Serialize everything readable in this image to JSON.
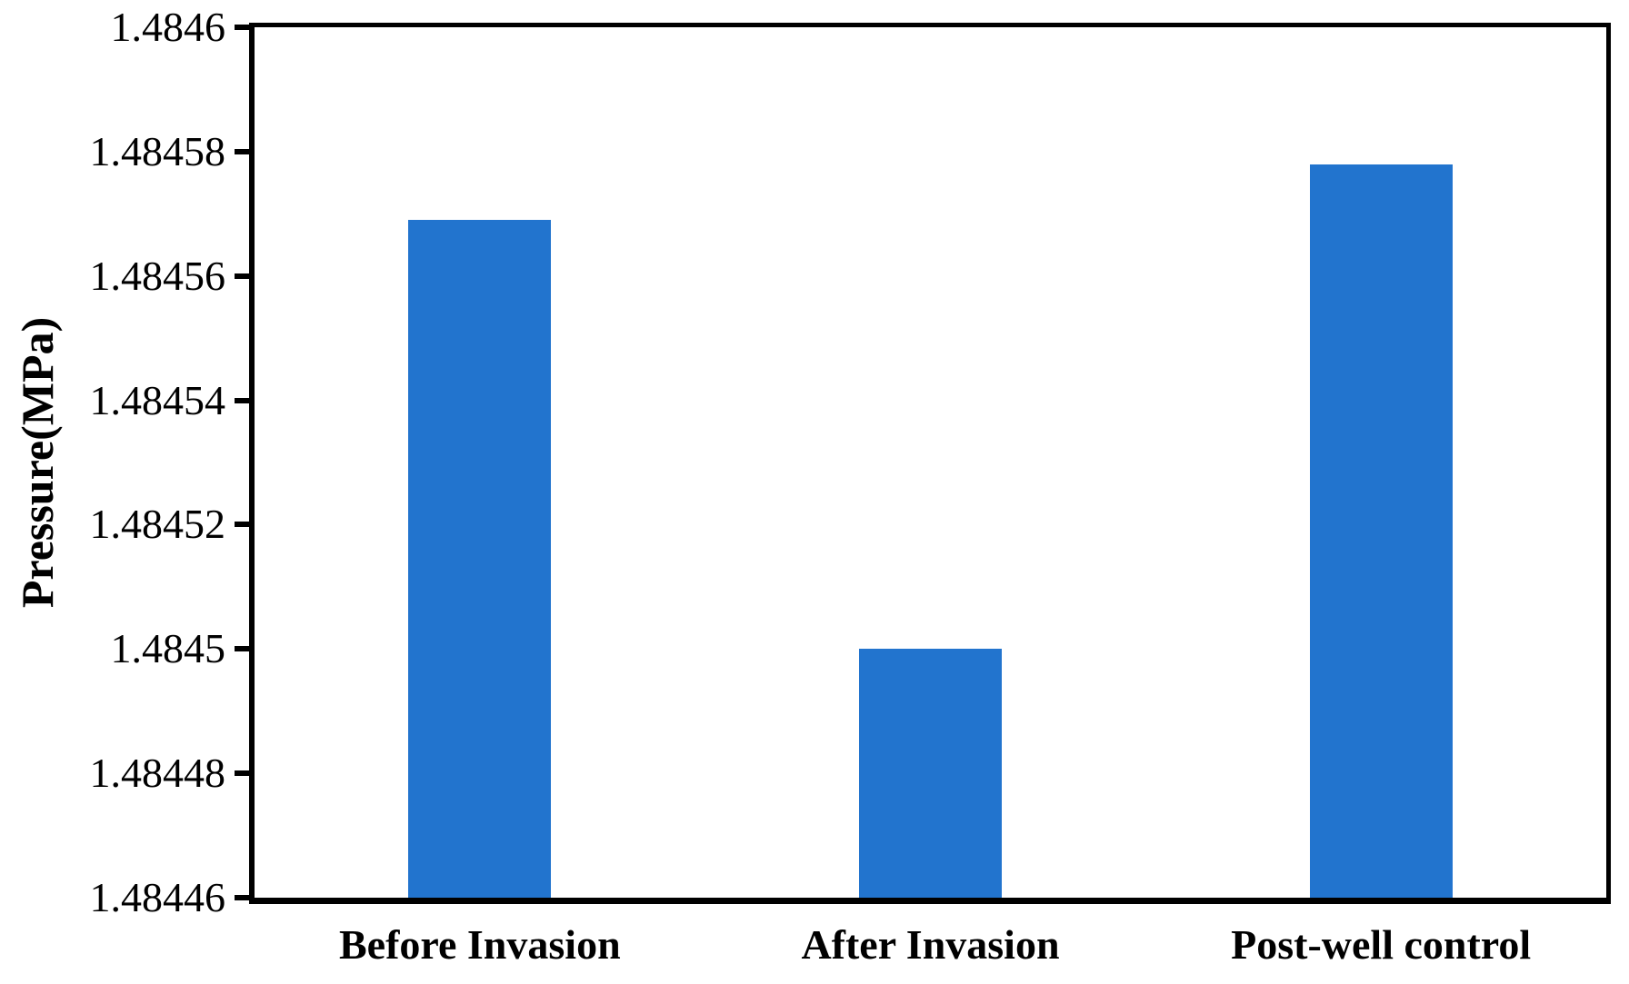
{
  "chart_data": {
    "type": "bar",
    "title": "",
    "xlabel": "",
    "ylabel": "Pressure(MPa)",
    "categories": [
      "Before Invasion",
      "After Invasion",
      "Post-well control"
    ],
    "values": [
      1.484569,
      1.4845,
      1.484578
    ],
    "ylim": [
      1.48446,
      1.4846
    ],
    "yticks": [
      {
        "value": 1.48446,
        "label": "1.48446"
      },
      {
        "value": 1.48448,
        "label": "1.48448"
      },
      {
        "value": 1.4845,
        "label": "1.4845"
      },
      {
        "value": 1.48452,
        "label": "1.48452"
      },
      {
        "value": 1.48454,
        "label": "1.48454"
      },
      {
        "value": 1.48456,
        "label": "1.48456"
      },
      {
        "value": 1.48458,
        "label": "1.48458"
      },
      {
        "value": 1.4846,
        "label": "1.4846"
      }
    ],
    "grid": false,
    "legend": null,
    "bar_color": "#2274CE",
    "axis_color": "#000000",
    "background_color": "#FFFFFF"
  }
}
